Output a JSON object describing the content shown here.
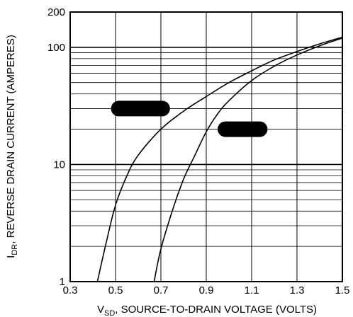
{
  "chart_data": {
    "type": "line",
    "title": "",
    "xlabel": {
      "prefix": "V",
      "subscript": "SD",
      "text": ", SOURCE-TO-DRAIN VOLTAGE (VOLTS)"
    },
    "ylabel": {
      "prefix": "I",
      "subscript": "DR",
      "text": ", REVERSE DRAIN CURRENT (AMPERES)"
    },
    "xlim": [
      0.3,
      1.5
    ],
    "ylim": [
      1,
      200
    ],
    "y_scale": "log",
    "grid": true,
    "x_ticks": [
      {
        "value": 0.3,
        "label": "0.3"
      },
      {
        "value": 0.5,
        "label": "0.5"
      },
      {
        "value": 0.7,
        "label": "0.7"
      },
      {
        "value": 0.9,
        "label": "0.9"
      },
      {
        "value": 1.1,
        "label": "1.1"
      },
      {
        "value": 1.3,
        "label": "1.3"
      },
      {
        "value": 1.5,
        "label": "1.5"
      }
    ],
    "x_gridlines": [
      0.3,
      0.5,
      0.7,
      0.9,
      1.1,
      1.3,
      1.5
    ],
    "y_ticks": [
      {
        "value": 1,
        "label": "1"
      },
      {
        "value": 10,
        "label": "10"
      },
      {
        "value": 100,
        "label": "100"
      },
      {
        "value": 200,
        "label": "200"
      }
    ],
    "y_gridlines": [
      1,
      2,
      3,
      4,
      5,
      6,
      7,
      8,
      9,
      10,
      20,
      30,
      40,
      50,
      60,
      70,
      80,
      90,
      100,
      200
    ],
    "series": [
      {
        "color": "#000000",
        "x": [
          0.42,
          0.46,
          0.5,
          0.55,
          0.6,
          0.7,
          0.8,
          0.9,
          1.0,
          1.1,
          1.2,
          1.3,
          1.4,
          1.5
        ],
        "y": [
          1,
          2.2,
          4.5,
          8,
          12,
          20,
          28.5,
          38,
          50,
          63,
          78,
          92,
          107,
          122
        ]
      },
      {
        "color": "#000000",
        "x": [
          0.67,
          0.7,
          0.75,
          0.8,
          0.85,
          0.9,
          0.95,
          1.0,
          1.1,
          1.2,
          1.3,
          1.4,
          1.5
        ],
        "y": [
          1,
          1.9,
          4,
          7.5,
          12,
          19,
          27,
          35,
          52,
          69,
          86,
          103,
          120
        ]
      }
    ],
    "annotations": [
      {
        "shape": "redaction-bar",
        "x1": 0.48,
        "x2": 0.74,
        "y": 30,
        "color": "#000000"
      },
      {
        "shape": "redaction-bar",
        "x1": 0.95,
        "x2": 1.17,
        "y": 20,
        "color": "#000000"
      }
    ]
  }
}
